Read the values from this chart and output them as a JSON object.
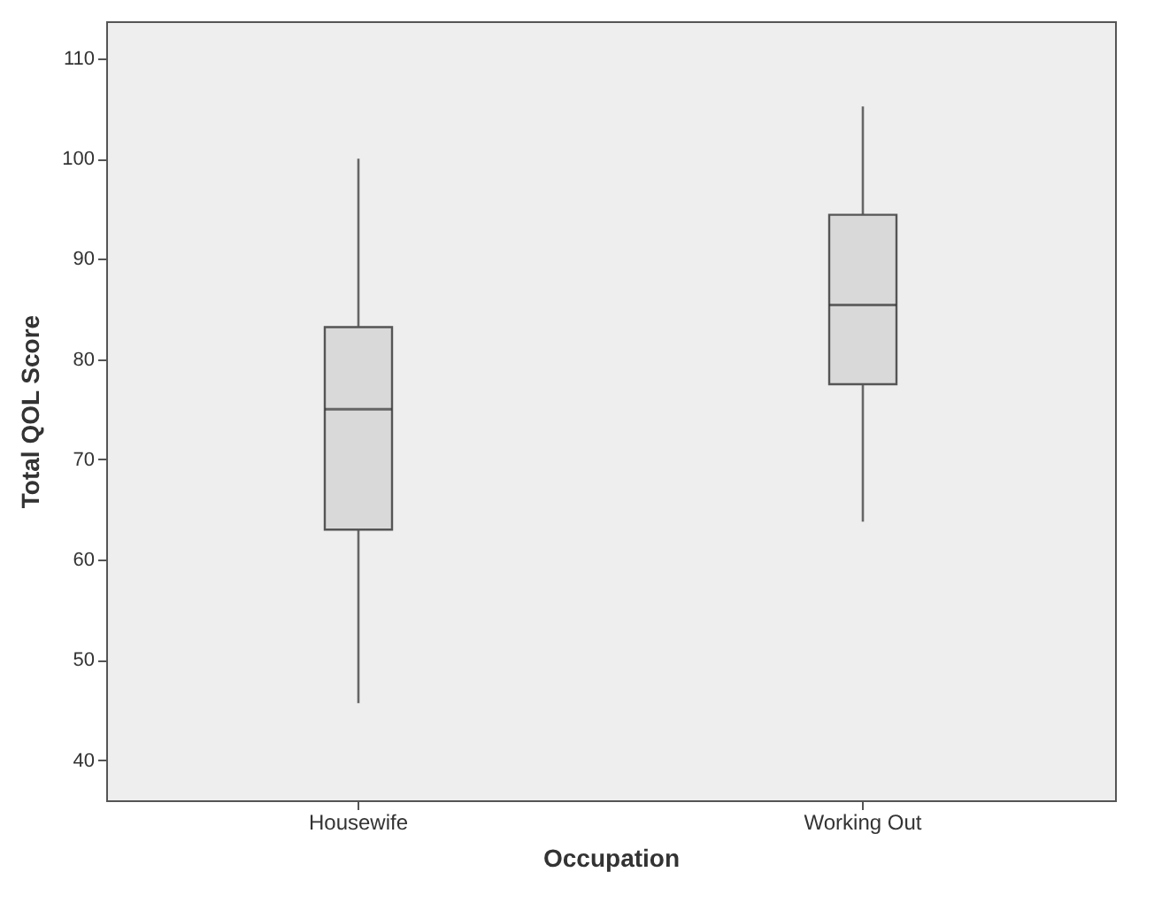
{
  "chart_data": {
    "type": "box",
    "xlabel": "Occupation",
    "ylabel": "Total QOL Score",
    "categories": [
      "Housewife",
      "Working Out"
    ],
    "series": [
      {
        "color": "#d9d9d9",
        "boxes": [
          {
            "low": 45.7,
            "q1": 63,
            "median": 75,
            "q3": 83.2,
            "high": 100
          },
          {
            "low": 63.8,
            "q1": 77.5,
            "median": 85.4,
            "q3": 94.4,
            "high": 105.2
          }
        ]
      }
    ],
    "ylim": [
      36,
      113.7
    ],
    "yticks": [
      40,
      50,
      60,
      70,
      80,
      90,
      100,
      110
    ],
    "grid": false
  }
}
